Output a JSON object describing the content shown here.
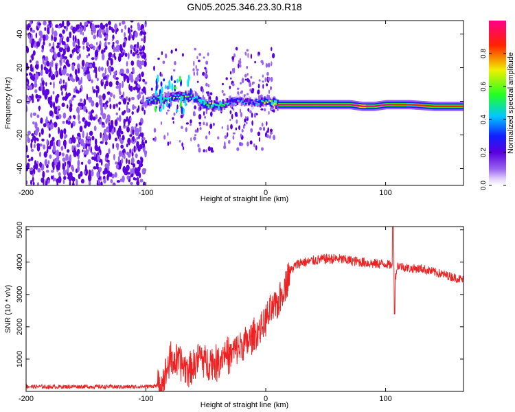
{
  "figure_title": "GN05.2025.346.23.30.R18",
  "colors": {
    "snr_line": "#ee2222",
    "colormap": [
      "#ffffff",
      "#e6d6fb",
      "#9a62f0",
      "#5a00e0",
      "#1020ff",
      "#00e8ff",
      "#22ff22",
      "#f0f000",
      "#ff2200",
      "#ff0088"
    ]
  },
  "chart_data": [
    {
      "type": "heatmap",
      "title": "",
      "xlabel": "Height of straight line (km)",
      "ylabel": "Frequency (Hz)",
      "xlim": [
        -200,
        165
      ],
      "ylim": [
        -50,
        48
      ],
      "xticks": [
        -200,
        -100,
        0,
        100
      ],
      "yticks": [
        -40,
        -20,
        0,
        20,
        40
      ],
      "colorbar": {
        "label": "Normalized spectral amplitude",
        "range": [
          0,
          1
        ],
        "ticks": [
          "0.0",
          "0.2",
          "0.4",
          "0.6",
          "0.8"
        ],
        "tick_values": [
          0,
          0.2,
          0.4,
          0.6,
          0.8
        ]
      },
      "signal_ridge": {
        "x": [
          -100,
          -90,
          -80,
          -70,
          -60,
          -50,
          -40,
          -30,
          -20,
          -10,
          0,
          10,
          30,
          50,
          70,
          80,
          90,
          100,
          120,
          140,
          165
        ],
        "frequency": [
          0,
          1,
          2,
          3,
          2,
          -2,
          -3,
          0,
          0,
          -1,
          0,
          -2,
          -2,
          -2,
          -2,
          -3,
          -3,
          -2,
          -2,
          -3,
          -3
        ],
        "amplitude": [
          0.35,
          0.45,
          0.5,
          0.55,
          0.45,
          0.6,
          0.55,
          0.35,
          0.3,
          0.3,
          0.55,
          0.85,
          0.9,
          0.92,
          0.9,
          0.95,
          0.9,
          0.92,
          0.7,
          0.8,
          0.85
        ]
      },
      "noise_region_x": [
        -200,
        -100
      ]
    },
    {
      "type": "line",
      "title": "",
      "xlabel": "Height of straight line (km)",
      "ylabel": "SNR (10 * v/v)",
      "xlim": [
        -200,
        165
      ],
      "ylim": [
        0,
        5100
      ],
      "xticks": [
        -200,
        -100,
        0,
        100
      ],
      "yticks": [
        1000,
        2000,
        3000,
        4000,
        5000
      ],
      "series": [
        {
          "x": [
            -200,
            -180,
            -160,
            -140,
            -120,
            -100,
            -90,
            -85,
            -80,
            -75,
            -70,
            -65,
            -60,
            -55,
            -50,
            -45,
            -40,
            -35,
            -30,
            -25,
            -20,
            -15,
            -10,
            -5,
            0,
            5,
            10,
            15,
            20,
            25,
            30,
            35,
            40,
            50,
            60,
            70,
            80,
            90,
            100,
            105,
            108,
            110,
            115,
            120,
            130,
            140,
            150,
            160,
            165
          ],
          "y": [
            150,
            140,
            150,
            145,
            140,
            150,
            180,
            400,
            1000,
            900,
            850,
            700,
            800,
            1100,
            900,
            950,
            850,
            1200,
            1100,
            1300,
            1400,
            1500,
            1700,
            1900,
            2200,
            2500,
            2700,
            3200,
            3700,
            3900,
            4000,
            4000,
            4050,
            4100,
            4100,
            4050,
            4000,
            3950,
            3950,
            3900,
            3500,
            3900,
            3850,
            3800,
            3800,
            3700,
            3600,
            3500,
            3450
          ]
        }
      ]
    }
  ]
}
